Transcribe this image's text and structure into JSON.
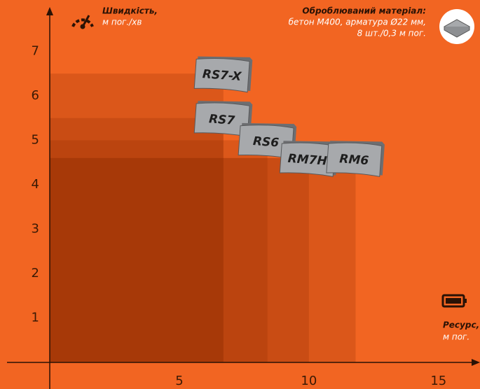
{
  "chart_data": {
    "type": "block",
    "ylabel": "Швидкість,",
    "yunit": "м пог./хв",
    "xlabel": "Ресурс,",
    "xunit": "м пог.",
    "note_title": "Оброблюваний матеріал:",
    "note_lines": [
      "бетон М400, арматура Ø22 мм,",
      "8 шт./0,3 м пог."
    ],
    "categories": [
      "RS7-X",
      "RS7",
      "RS6",
      "RM7H",
      "RM6"
    ],
    "x": [
      6.7,
      6.7,
      8.4,
      10,
      11.8
    ],
    "values": [
      6.5,
      5.5,
      5.0,
      4.6,
      4.6
    ],
    "color": "#8a2a00",
    "xlim": [
      0,
      16.6
    ],
    "ylim": [
      0,
      8
    ],
    "xticks": [
      5,
      10,
      15
    ],
    "yticks": [
      1,
      2,
      3,
      4,
      5,
      6,
      7
    ]
  }
}
